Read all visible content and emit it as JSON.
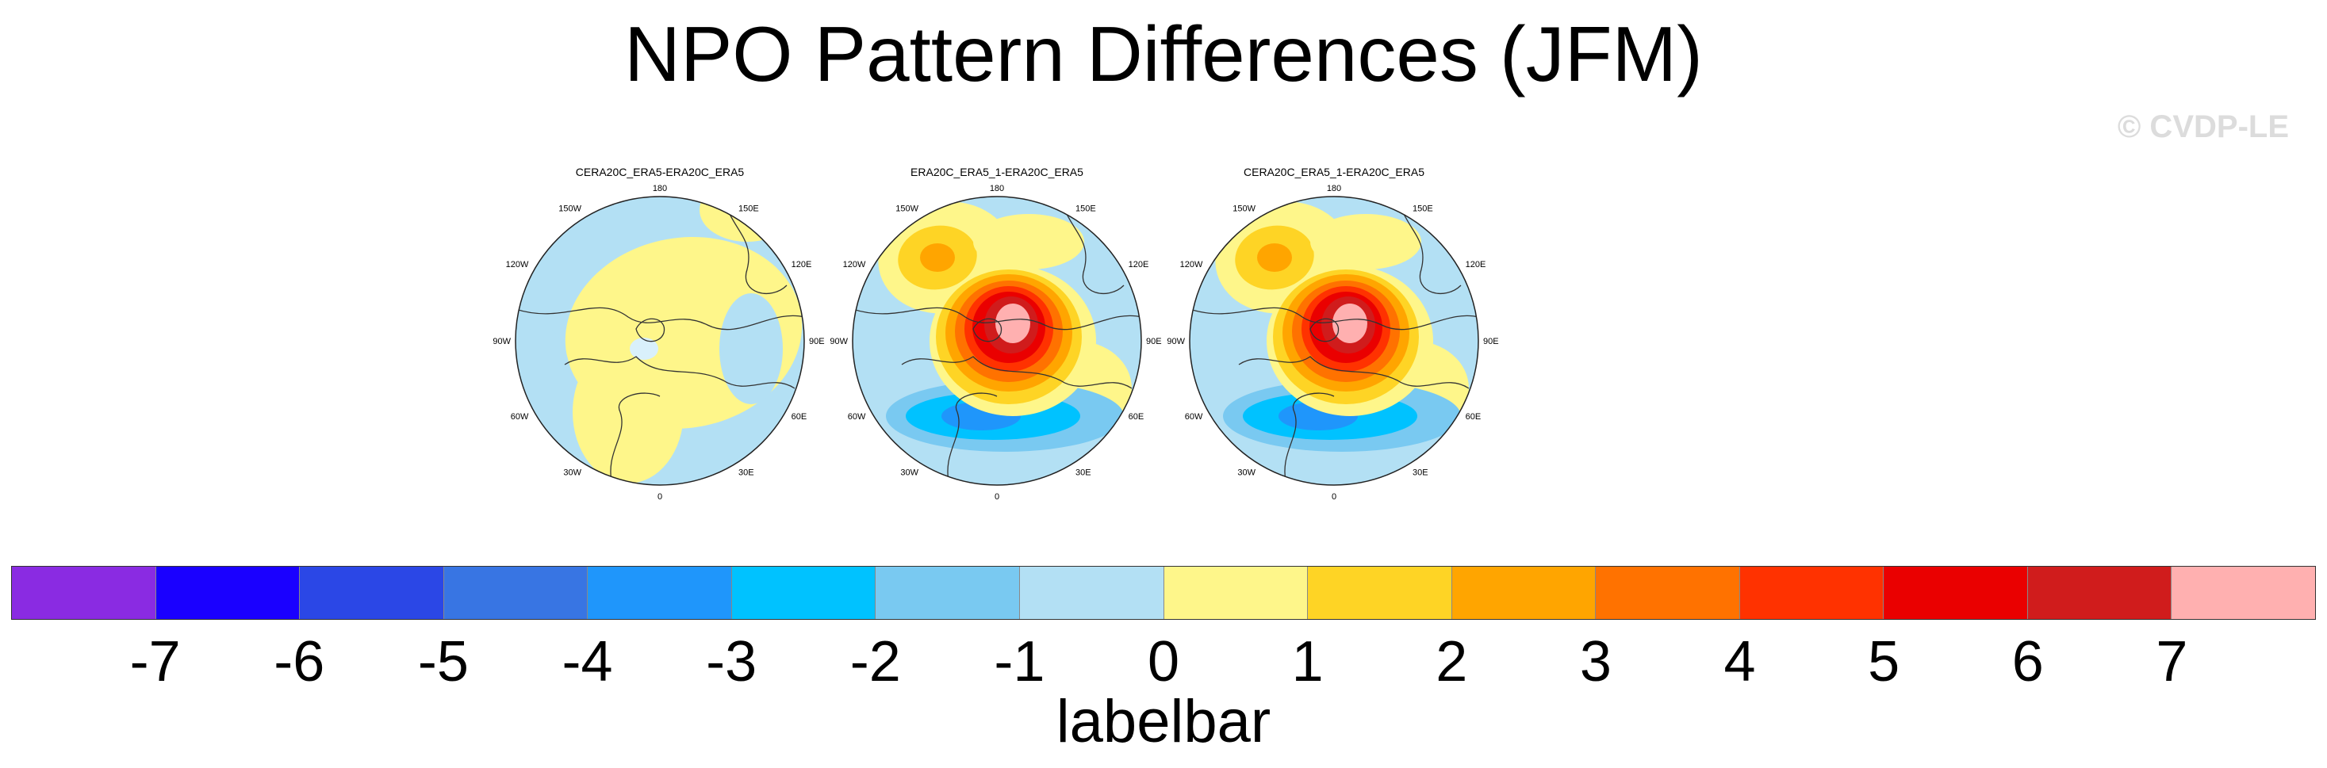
{
  "title": "NPO Pattern Differences (JFM)",
  "watermark": "© CVDP-LE",
  "panels": [
    {
      "title": "CERA20C_ERA5-ERA20C_ERA5",
      "pattern": "weak",
      "lon_labels": {
        "n": "180",
        "nne": "150E",
        "ene": "120E",
        "e": "90E",
        "ese": "60E",
        "sse": "30E",
        "s": "0",
        "ssw": "30W",
        "wsw": "60W",
        "w": "90W",
        "wnw": "120W",
        "nnw": "150W"
      }
    },
    {
      "title": "ERA20C_ERA5_1-ERA20C_ERA5",
      "pattern": "strong",
      "lon_labels": {
        "n": "180",
        "nne": "150E",
        "ene": "120E",
        "e": "90E",
        "ese": "60E",
        "sse": "30E",
        "s": "0",
        "ssw": "30W",
        "wsw": "60W",
        "w": "90W",
        "wnw": "120W",
        "nnw": "150W"
      }
    },
    {
      "title": "CERA20C_ERA5_1-ERA20C_ERA5",
      "pattern": "strong",
      "lon_labels": {
        "n": "180",
        "nne": "150E",
        "ene": "120E",
        "e": "90E",
        "ese": "60E",
        "sse": "30E",
        "s": "0",
        "ssw": "30W",
        "wsw": "60W",
        "w": "90W",
        "wnw": "120W",
        "nnw": "150W"
      }
    }
  ],
  "colorbar": {
    "colors": [
      "#8a2be2",
      "#1a00ff",
      "#2b47e6",
      "#3875e3",
      "#1f96fb",
      "#00c2ff",
      "#79c9f1",
      "#b3e0f4",
      "#fef68a",
      "#fed425",
      "#ffa500",
      "#ff7200",
      "#ff3200",
      "#ea0000",
      "#d01c1c",
      "#ffb0b0"
    ],
    "ticks": [
      "-7",
      "-6",
      "-5",
      "-4",
      "-3",
      "-2",
      "-1",
      "0",
      "1",
      "2",
      "3",
      "4",
      "5",
      "6",
      "7"
    ],
    "label": "labelbar"
  }
}
